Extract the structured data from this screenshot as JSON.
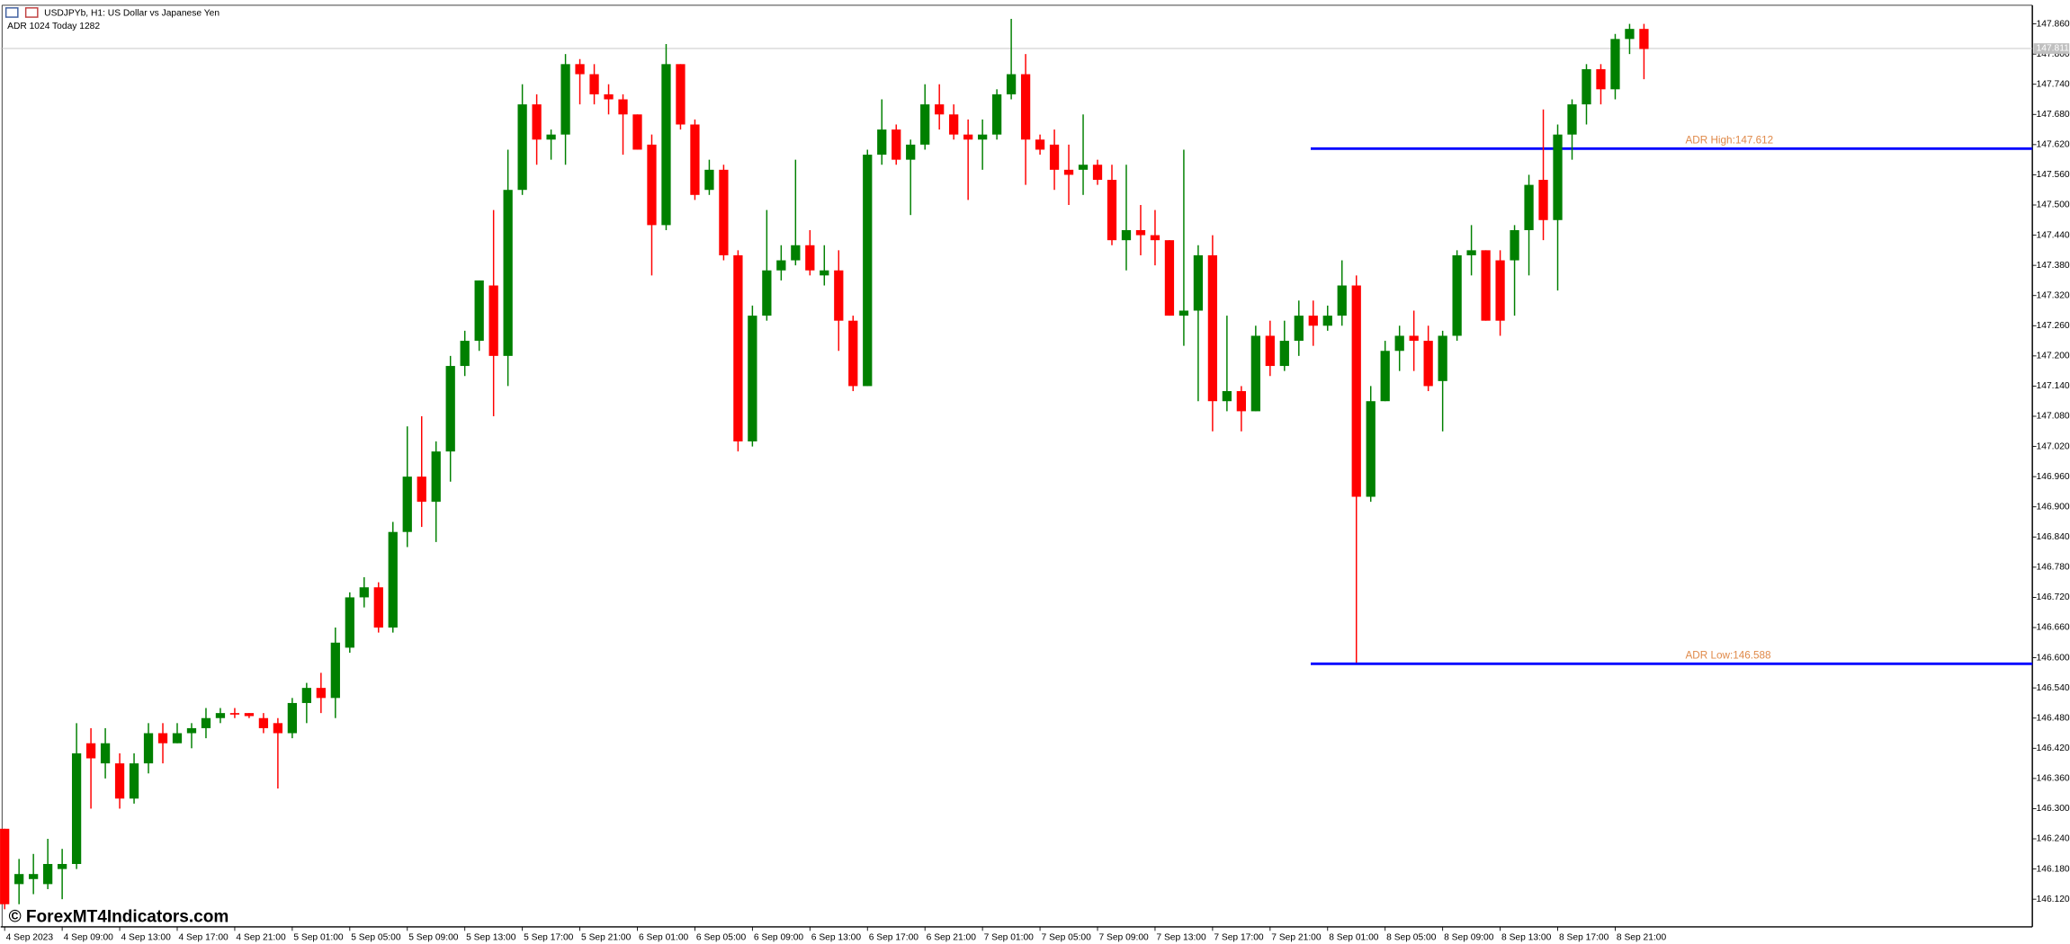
{
  "chart_data": {
    "type": "candlestick",
    "title": "USDJPYb, H1:  US Dollar vs Japanese Yen",
    "subtitle": "ADR 1024  Today 1282",
    "watermark": "© ForexMT4Indicators.com",
    "categories": [
      "4 Sep 2023",
      null,
      null,
      null,
      "4 Sep 09:00",
      null,
      null,
      null,
      "4 Sep 13:00",
      null,
      null,
      null,
      "4 Sep 17:00",
      null,
      null,
      null,
      "4 Sep 21:00",
      null,
      null,
      null,
      "5 Sep 01:00",
      null,
      null,
      null,
      "5 Sep 05:00",
      null,
      null,
      null,
      "5 Sep 09:00",
      null,
      null,
      null,
      "5 Sep 13:00",
      null,
      null,
      null,
      "5 Sep 17:00",
      null,
      null,
      null,
      "5 Sep 21:00",
      null,
      null,
      null,
      "6 Sep 01:00",
      null,
      null,
      null,
      "6 Sep 05:00",
      null,
      null,
      null,
      "6 Sep 09:00",
      null,
      null,
      null,
      "6 Sep 13:00",
      null,
      null,
      null,
      "6 Sep 17:00",
      null,
      null,
      null,
      "6 Sep 21:00",
      null,
      null,
      null,
      "7 Sep 01:00",
      null,
      null,
      null,
      "7 Sep 05:00",
      null,
      null,
      null,
      "7 Sep 09:00",
      null,
      null,
      null,
      "7 Sep 13:00",
      null,
      null,
      null,
      "7 Sep 17:00",
      null,
      null,
      null,
      "7 Sep 21:00",
      null,
      null,
      null,
      "8 Sep 01:00",
      null,
      null,
      null,
      "8 Sep 05:00",
      null,
      null,
      null,
      "8 Sep 09:00",
      null,
      null,
      null,
      "8 Sep 13:00",
      null,
      null,
      null,
      "8 Sep 17:00",
      null,
      null,
      null,
      "8 Sep 21:00",
      null,
      null
    ],
    "open": [
      146.26,
      146.15,
      146.16,
      146.15,
      146.18,
      146.19,
      146.43,
      146.39,
      146.39,
      146.32,
      146.39,
      146.45,
      146.43,
      146.45,
      146.46,
      146.48,
      146.49,
      146.49,
      146.48,
      146.47,
      146.45,
      146.51,
      146.54,
      146.52,
      146.62,
      146.72,
      146.74,
      146.66,
      146.85,
      146.96,
      146.91,
      147.01,
      147.18,
      147.23,
      147.34,
      147.2,
      147.53,
      147.7,
      147.63,
      147.64,
      147.78,
      147.76,
      147.72,
      147.71,
      147.68,
      147.62,
      147.46,
      147.78,
      147.66,
      147.53,
      147.57,
      147.4,
      147.03,
      147.28,
      147.37,
      147.39,
      147.42,
      147.36,
      147.37,
      147.27,
      147.14,
      147.6,
      147.65,
      147.59,
      147.62,
      147.7,
      147.68,
      147.64,
      147.63,
      147.64,
      147.72,
      147.76,
      147.63,
      147.62,
      147.57,
      147.57,
      147.58,
      147.55,
      147.43,
      147.45,
      147.44,
      147.43,
      147.28,
      147.29,
      147.4,
      147.11,
      147.13,
      147.09,
      147.24,
      147.18,
      147.23,
      147.28,
      147.26,
      147.28,
      147.34,
      146.92,
      147.11,
      147.21,
      147.24,
      147.23,
      147.15,
      147.24,
      147.4,
      147.41,
      147.39,
      147.39,
      147.45,
      147.55,
      147.47,
      147.64,
      147.7,
      147.77,
      147.73,
      147.83,
      147.85
    ],
    "high": [
      146.26,
      146.2,
      146.21,
      146.24,
      146.22,
      146.47,
      146.46,
      146.46,
      146.41,
      146.41,
      146.47,
      146.47,
      146.47,
      146.47,
      146.5,
      146.5,
      146.5,
      146.49,
      146.49,
      146.48,
      146.52,
      146.55,
      146.57,
      146.66,
      146.73,
      146.76,
      146.75,
      146.87,
      147.06,
      147.08,
      147.03,
      147.2,
      147.25,
      147.35,
      147.49,
      147.61,
      147.74,
      147.72,
      147.65,
      147.8,
      147.79,
      147.78,
      147.74,
      147.72,
      147.68,
      147.64,
      147.82,
      147.78,
      147.67,
      147.59,
      147.58,
      147.41,
      147.3,
      147.49,
      147.42,
      147.59,
      147.45,
      147.42,
      147.41,
      147.28,
      147.61,
      147.71,
      147.66,
      147.63,
      147.74,
      147.74,
      147.7,
      147.67,
      147.67,
      147.73,
      147.87,
      147.8,
      147.64,
      147.65,
      147.62,
      147.68,
      147.59,
      147.58,
      147.58,
      147.5,
      147.49,
      147.43,
      147.61,
      147.42,
      147.44,
      147.28,
      147.14,
      147.26,
      147.27,
      147.27,
      147.31,
      147.31,
      147.3,
      147.39,
      147.36,
      147.14,
      147.23,
      147.26,
      147.29,
      147.26,
      147.25,
      147.41,
      147.46,
      147.41,
      147.41,
      147.46,
      147.56,
      147.69,
      147.66,
      147.71,
      147.78,
      147.78,
      147.84,
      147.86,
      147.86
    ],
    "low": [
      146.1,
      146.11,
      146.13,
      146.14,
      146.12,
      146.18,
      146.3,
      146.36,
      146.3,
      146.31,
      146.37,
      146.39,
      146.43,
      146.42,
      146.44,
      146.47,
      146.48,
      146.48,
      146.45,
      146.34,
      146.44,
      146.47,
      146.49,
      146.48,
      146.61,
      146.7,
      146.65,
      146.65,
      146.82,
      146.86,
      146.83,
      146.95,
      147.16,
      147.21,
      147.08,
      147.14,
      147.52,
      147.58,
      147.59,
      147.58,
      147.7,
      147.7,
      147.68,
      147.6,
      147.61,
      147.36,
      147.45,
      147.65,
      147.51,
      147.52,
      147.39,
      147.01,
      147.02,
      147.27,
      147.35,
      147.38,
      147.36,
      147.34,
      147.21,
      147.13,
      147.14,
      147.58,
      147.58,
      147.48,
      147.61,
      147.65,
      147.63,
      147.51,
      147.57,
      147.63,
      147.71,
      147.54,
      147.6,
      147.53,
      147.5,
      147.52,
      147.54,
      147.42,
      147.37,
      147.4,
      147.38,
      147.28,
      147.22,
      147.11,
      147.05,
      147.09,
      147.05,
      147.09,
      147.16,
      147.17,
      147.2,
      147.22,
      147.25,
      147.26,
      146.59,
      146.91,
      147.11,
      147.17,
      147.17,
      147.13,
      147.05,
      147.23,
      147.36,
      147.27,
      147.24,
      147.28,
      147.36,
      147.43,
      147.33,
      147.59,
      147.66,
      147.7,
      147.71,
      147.8,
      147.75
    ],
    "close": [
      146.11,
      146.17,
      146.17,
      146.19,
      146.19,
      146.41,
      146.4,
      146.43,
      146.32,
      146.39,
      146.45,
      146.43,
      146.45,
      146.46,
      146.48,
      146.49,
      146.487,
      146.484,
      146.46,
      146.45,
      146.51,
      146.54,
      146.52,
      146.63,
      146.72,
      146.74,
      146.66,
      146.85,
      146.96,
      146.91,
      147.01,
      147.18,
      147.23,
      147.35,
      147.2,
      147.53,
      147.7,
      147.63,
      147.64,
      147.78,
      147.76,
      147.72,
      147.71,
      147.68,
      147.61,
      147.46,
      147.78,
      147.66,
      147.52,
      147.57,
      147.4,
      147.03,
      147.28,
      147.37,
      147.39,
      147.42,
      147.37,
      147.37,
      147.27,
      147.14,
      147.6,
      147.65,
      147.59,
      147.62,
      147.7,
      147.68,
      147.64,
      147.63,
      147.64,
      147.72,
      147.76,
      147.63,
      147.61,
      147.57,
      147.56,
      147.58,
      147.55,
      147.43,
      147.45,
      147.44,
      147.43,
      147.28,
      147.29,
      147.4,
      147.11,
      147.13,
      147.09,
      147.24,
      147.18,
      147.23,
      147.28,
      147.26,
      147.28,
      147.34,
      146.92,
      147.11,
      147.21,
      147.24,
      147.23,
      147.14,
      147.24,
      147.4,
      147.41,
      147.27,
      147.27,
      147.45,
      147.54,
      147.47,
      147.64,
      147.7,
      147.77,
      147.73,
      147.83,
      147.85,
      147.81
    ],
    "up_color": "#008000",
    "down_color": "#ff0000",
    "ylim": [
      146.065,
      147.897
    ],
    "yticks": [
      {
        "value": 147.86,
        "label": "147.860"
      },
      {
        "value": 147.8,
        "label": "147.800"
      },
      {
        "value": 147.74,
        "label": "147.740"
      },
      {
        "value": 147.68,
        "label": "147.680"
      },
      {
        "value": 147.62,
        "label": "147.620"
      },
      {
        "value": 147.56,
        "label": "147.560"
      },
      {
        "value": 147.5,
        "label": "147.500"
      },
      {
        "value": 147.44,
        "label": "147.440"
      },
      {
        "value": 147.38,
        "label": "147.380"
      },
      {
        "value": 147.32,
        "label": "147.320"
      },
      {
        "value": 147.26,
        "label": "147.260"
      },
      {
        "value": 147.2,
        "label": "147.200"
      },
      {
        "value": 147.14,
        "label": "147.140"
      },
      {
        "value": 147.08,
        "label": "147.080"
      },
      {
        "value": 147.02,
        "label": "147.020"
      },
      {
        "value": 146.96,
        "label": "146.960"
      },
      {
        "value": 146.9,
        "label": "146.900"
      },
      {
        "value": 146.84,
        "label": "146.840"
      },
      {
        "value": 146.78,
        "label": "146.780"
      },
      {
        "value": 146.72,
        "label": "146.720"
      },
      {
        "value": 146.66,
        "label": "146.660"
      },
      {
        "value": 146.6,
        "label": "146.600"
      },
      {
        "value": 146.54,
        "label": "146.540"
      },
      {
        "value": 146.48,
        "label": "146.480"
      },
      {
        "value": 146.42,
        "label": "146.420"
      },
      {
        "value": 146.36,
        "label": "146.360"
      },
      {
        "value": 146.3,
        "label": "146.300"
      },
      {
        "value": 146.24,
        "label": "146.240"
      },
      {
        "value": 146.18,
        "label": "146.180"
      },
      {
        "value": 146.12,
        "label": "146.120"
      }
    ],
    "grid": false,
    "current_price": 147.811,
    "levels": [
      {
        "value": 147.612,
        "text": "ADR High:147.612",
        "color": "#0000ff",
        "text_color": "#e08a4a"
      },
      {
        "value": 146.588,
        "text": "ADR Low:146.588",
        "color": "#0000ff",
        "text_color": "#e08a4a"
      }
    ]
  }
}
